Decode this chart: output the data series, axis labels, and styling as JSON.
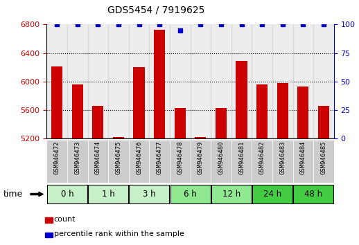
{
  "title": "GDS5454 / 7919625",
  "samples": [
    "GSM946472",
    "GSM946473",
    "GSM946474",
    "GSM946475",
    "GSM946476",
    "GSM946477",
    "GSM946478",
    "GSM946479",
    "GSM946480",
    "GSM946481",
    "GSM946482",
    "GSM946483",
    "GSM946484",
    "GSM946485"
  ],
  "counts": [
    6210,
    5960,
    5660,
    5215,
    6200,
    6730,
    5630,
    5215,
    5630,
    6290,
    5960,
    5975,
    5930,
    5660
  ],
  "percentile_ranks": [
    100,
    100,
    100,
    100,
    100,
    100,
    95,
    100,
    100,
    100,
    100,
    100,
    100,
    100
  ],
  "time_groups": [
    {
      "label": "0 h",
      "start": 0,
      "end": 2,
      "color": "#c8f0c8"
    },
    {
      "label": "1 h",
      "start": 2,
      "end": 4,
      "color": "#c8f0c8"
    },
    {
      "label": "3 h",
      "start": 4,
      "end": 6,
      "color": "#c8f0c8"
    },
    {
      "label": "6 h",
      "start": 6,
      "end": 8,
      "color": "#90e890"
    },
    {
      "label": "12 h",
      "start": 8,
      "end": 10,
      "color": "#90e890"
    },
    {
      "label": "24 h",
      "start": 10,
      "end": 12,
      "color": "#44cc44"
    },
    {
      "label": "48 h",
      "start": 12,
      "end": 14,
      "color": "#44cc44"
    }
  ],
  "bar_color": "#cc0000",
  "dot_color": "#0000cc",
  "ylim_left": [
    5200,
    6800
  ],
  "ylim_right": [
    0,
    100
  ],
  "yticks_left": [
    5200,
    5600,
    6000,
    6400,
    6800
  ],
  "yticks_right": [
    0,
    25,
    50,
    75,
    100
  ],
  "grid_values": [
    5600,
    6000,
    6400
  ],
  "bar_width": 0.55,
  "sample_bg_color": "#cccccc",
  "sample_bg_color2": "#e0e0e0",
  "legend_count_label": "count",
  "legend_pct_label": "percentile rank within the sample",
  "fig_width": 5.18,
  "fig_height": 3.54,
  "dpi": 100
}
